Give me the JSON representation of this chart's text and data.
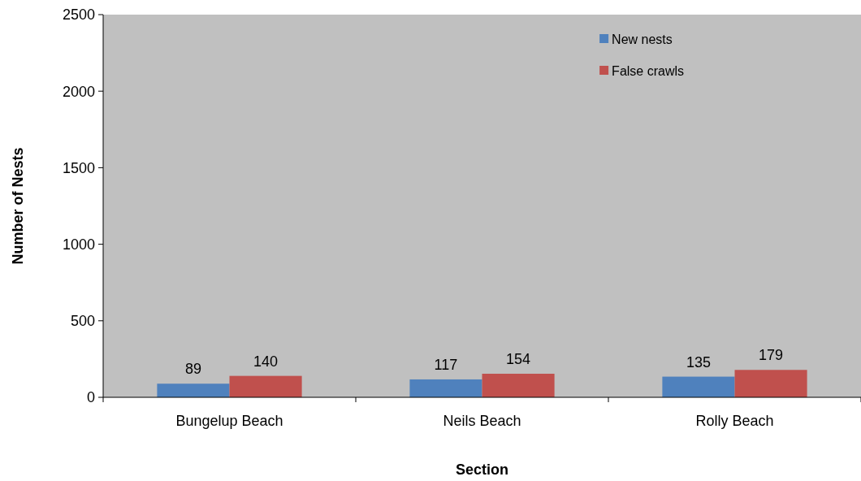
{
  "chart_data": {
    "type": "bar",
    "xlabel": "Section",
    "ylabel": "Number of Nests",
    "categories": [
      "Bungelup Beach",
      "Neils Beach",
      "Rolly Beach"
    ],
    "series": [
      {
        "name": "New nests",
        "color": "#4f81bd",
        "values": [
          89,
          117,
          135
        ]
      },
      {
        "name": "False crawls",
        "color": "#c0504d",
        "values": [
          140,
          154,
          179
        ]
      }
    ],
    "ylim": [
      0,
      2500
    ],
    "yticks": [
      0,
      500,
      1000,
      1500,
      2000,
      2500
    ],
    "data_labels": true,
    "legend": "top right",
    "grid": false
  }
}
